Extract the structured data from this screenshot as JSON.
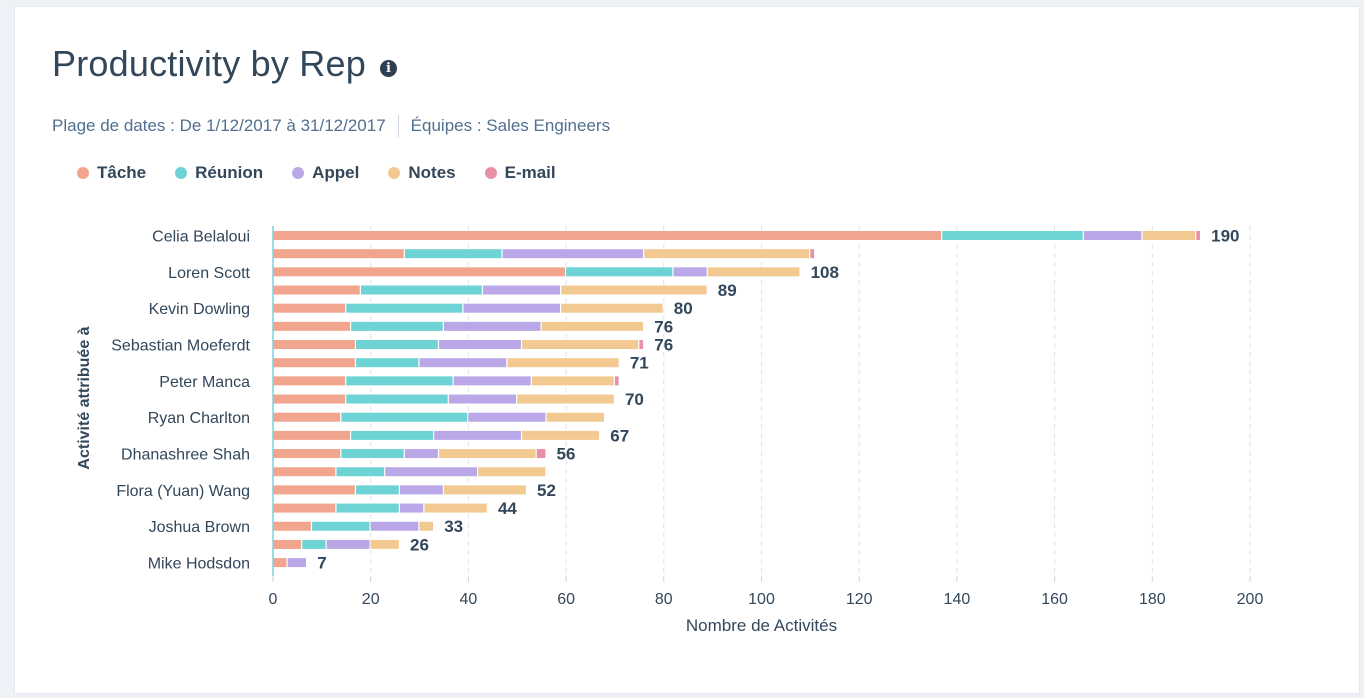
{
  "header": {
    "title": "Productivity by Rep",
    "info_icon": "info-icon",
    "info_glyph": "i"
  },
  "filters": {
    "date_range": "Plage de dates : De 1/12/2017 à 31/12/2017",
    "teams": "Équipes : Sales Engineers"
  },
  "colors": {
    "tache": "#f2a58e",
    "reunion": "#6ed3d4",
    "appel": "#b9a7e8",
    "notes": "#f3c992",
    "email": "#e790a8"
  },
  "chart_data": {
    "type": "bar",
    "orientation": "horizontal",
    "stacked": true,
    "xlabel": "Nombre de Activités",
    "ylabel": "Activité attribuée à",
    "xlim": [
      0,
      200
    ],
    "xticks": [
      0,
      20,
      40,
      60,
      80,
      100,
      120,
      140,
      160,
      180,
      200
    ],
    "grid": "vertical dashed",
    "legend": [
      "Tâche",
      "Réunion",
      "Appel",
      "Notes",
      "E-mail"
    ],
    "categories": [
      "Celia Belaloui",
      "",
      "Loren Scott",
      "",
      "Kevin Dowling",
      "",
      "Sebastian Moeferdt",
      "",
      "Peter Manca",
      "",
      "Ryan Charlton",
      "",
      "Dhanashree Shah",
      "",
      "Flora (Yuan) Wang",
      "",
      "Joshua Brown",
      "",
      "Mike Hodsdon"
    ],
    "series": [
      {
        "name": "Tâche",
        "values": [
          137,
          27,
          60,
          18,
          15,
          16,
          17,
          17,
          15,
          15,
          14,
          16,
          14,
          13,
          17,
          13,
          8,
          6,
          3
        ]
      },
      {
        "name": "Réunion",
        "values": [
          29,
          20,
          22,
          25,
          24,
          19,
          17,
          13,
          22,
          21,
          26,
          17,
          13,
          10,
          9,
          13,
          12,
          5,
          0
        ]
      },
      {
        "name": "Appel",
        "values": [
          12,
          29,
          7,
          16,
          20,
          20,
          17,
          18,
          16,
          14,
          16,
          18,
          7,
          19,
          9,
          5,
          10,
          9,
          4
        ]
      },
      {
        "name": "Notes",
        "values": [
          11,
          34,
          19,
          30,
          21,
          21,
          24,
          23,
          17,
          20,
          12,
          16,
          20,
          14,
          17,
          13,
          3,
          6,
          0
        ]
      },
      {
        "name": "E-mail",
        "values": [
          1,
          1,
          0,
          0,
          0,
          0,
          1,
          0,
          1,
          0,
          0,
          0,
          2,
          0,
          0,
          0,
          0,
          0,
          0
        ]
      }
    ],
    "total_labels": [
      "190",
      "",
      "108",
      "89",
      "80",
      "76",
      "76",
      "71",
      "",
      "70",
      "",
      "67",
      "56",
      "",
      "52",
      "44",
      "33",
      "26",
      "7"
    ]
  }
}
